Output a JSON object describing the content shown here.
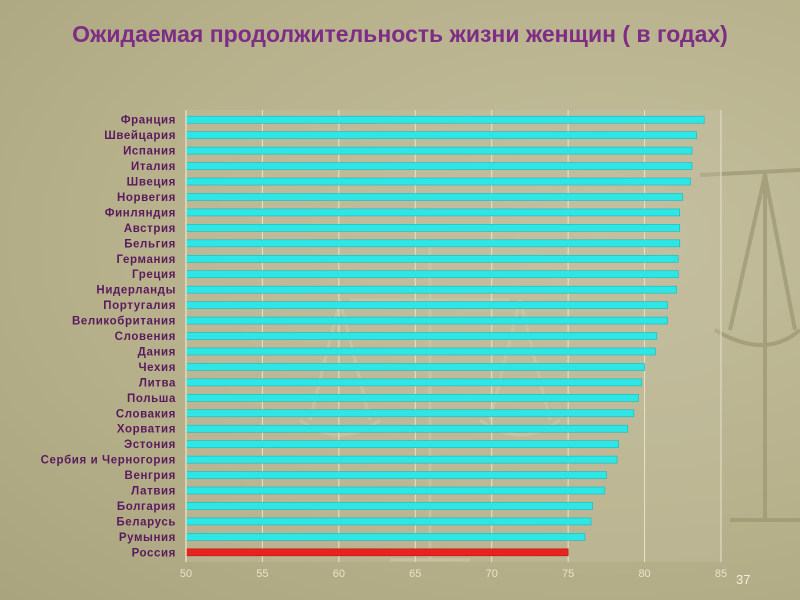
{
  "title": "Ожидаемая продолжительность жизни женщин ( в годах)",
  "page_number": "37",
  "colors": {
    "bar": "#2ee6e6",
    "highlight_bar": "#e8231f",
    "category_text": "#5a1a5e",
    "title": "#7e2c86"
  },
  "chart_data": {
    "type": "bar",
    "orientation": "horizontal",
    "title": "Ожидаемая продолжительность жизни женщин ( в годах)",
    "xlim": [
      50,
      85
    ],
    "ticks": [
      50,
      55,
      60,
      65,
      70,
      75,
      80,
      85
    ],
    "grid": true,
    "categories": [
      "Франция",
      "Швейцария",
      "Испания",
      "Италия",
      "Швеция",
      "Норвегия",
      "Финляндия",
      "Австрия",
      "Бельгия",
      "Германия",
      "Греция",
      "Нидерланды",
      "Португалия",
      "Великобритания",
      "Словения",
      "Дания",
      "Чехия",
      "Литва",
      "Польша",
      "Словакия",
      "Хорватия",
      "Эстония",
      "Сербия и Черногория",
      "Венгрия",
      "Латвия",
      "Болгария",
      "Беларусь",
      "Румыния",
      "Россия"
    ],
    "values": [
      83.9,
      83.4,
      83.1,
      83.1,
      83.0,
      82.5,
      82.3,
      82.3,
      82.3,
      82.2,
      82.2,
      82.1,
      81.5,
      81.5,
      80.8,
      80.7,
      80.0,
      79.8,
      79.6,
      79.3,
      78.9,
      78.3,
      78.2,
      77.5,
      77.4,
      76.6,
      76.5,
      76.1,
      75.0
    ],
    "highlight_category": "Россия"
  }
}
